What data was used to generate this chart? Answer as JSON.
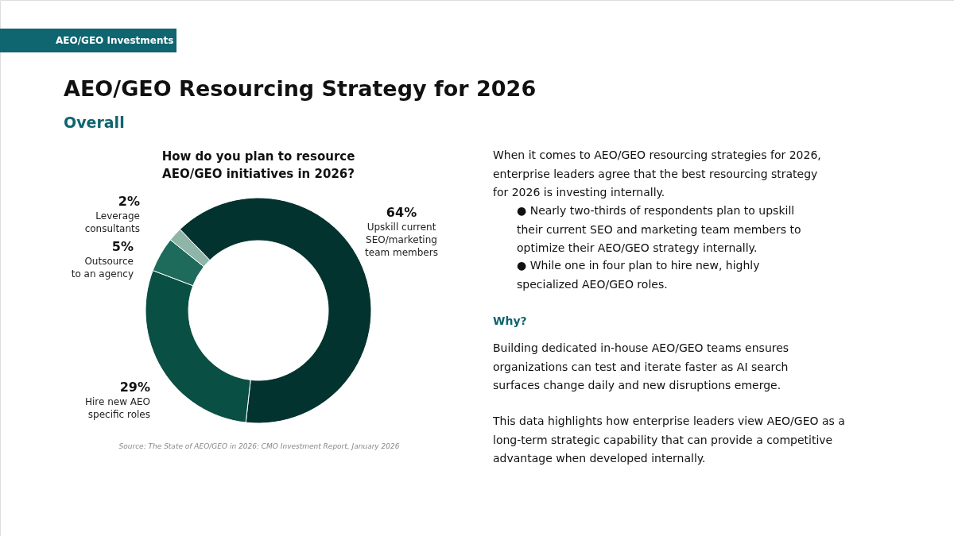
{
  "chart_data": {
    "type": "donut",
    "title": "AEO/GEO Resourcing Strategy for 2026",
    "subtitle": "Overall",
    "categories": [
      "Upskill current SEO/marketing team members",
      "Hire new AEO specific roles",
      "Outsource to an agency",
      "Leverage consultants"
    ],
    "values": [
      64,
      29,
      5,
      2
    ],
    "value_labels": [
      "64%",
      "29%",
      "5%",
      "2%"
    ],
    "colors": [
      "#02332f",
      "#0a4f44",
      "#1f6b5b",
      "#8db5a8"
    ],
    "annotations": [
      "AEO/GEO Investments",
      "How do you plan to resource AEO/GEO initiatives in 2026?",
      "Source: The State of AEO/GEO in 2026: CMO Investment Report, January 2026",
      "When it comes to AEO/GEO resourcing strategies for 2026, enterprise leaders agree that the best resourcing strategy for 2026 is investing internally.",
      "● Nearly two-thirds of respondents plan to upskill their current SEO and marketing team members to optimize their AEO/GEO strategy internally.",
      "● While one in four plan to hire new, highly specialized AEO/GEO roles.",
      "Why?",
      "Building dedicated in-house AEO/GEO teams ensures organizations can test and iterate faster as AI search surfaces change daily and new disruptions emerge.",
      "This data highlights how enterprise leaders view AEO/GEO as a long-term strategic capability that can provide a competitive advantage when developed internally."
    ]
  }
}
